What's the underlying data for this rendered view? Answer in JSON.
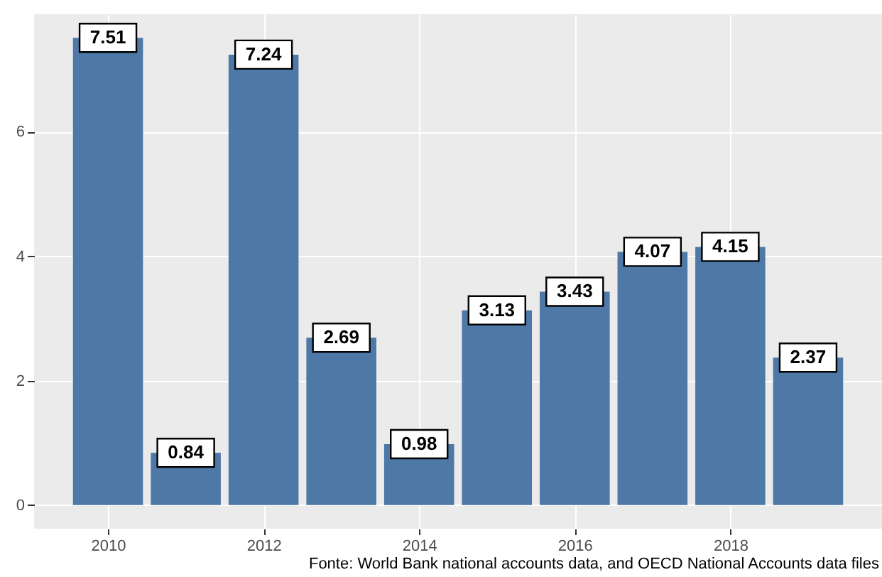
{
  "chart_data": {
    "type": "bar",
    "x": [
      2010,
      2011,
      2012,
      2013,
      2014,
      2015,
      2016,
      2017,
      2018,
      2019
    ],
    "values": [
      7.51,
      0.84,
      7.24,
      2.69,
      0.98,
      3.13,
      3.43,
      4.07,
      4.15,
      2.37
    ],
    "color": "#4e79a7",
    "data_labels": true,
    "xlim": [
      2009.05,
      2019.95
    ],
    "xticks": [
      2010,
      2012,
      2014,
      2016,
      2018
    ],
    "ylim": [
      -0.38,
      7.89
    ],
    "yticks": [
      0,
      2,
      4,
      6
    ],
    "grid": true,
    "annotations": [
      "Fonte: World Bank national accounts data, and OECD National Accounts data files"
    ]
  }
}
